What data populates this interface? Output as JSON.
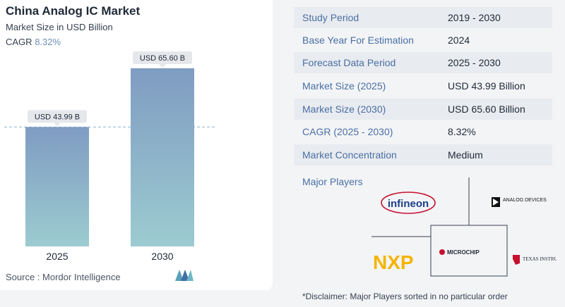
{
  "chart": {
    "title": "China Analog IC Market",
    "subtitle": "Market Size in USD Billion",
    "cagr_label": "CAGR",
    "cagr_value": "8.32%",
    "source": "Source :  Mordor Intelligence"
  },
  "chart_data": {
    "type": "bar",
    "categories": [
      "2025",
      "2030"
    ],
    "values": [
      43.99,
      65.6
    ],
    "data_labels": [
      "USD 43.99 B",
      "USD 65.60 B"
    ],
    "reference_line": 43.99,
    "ylim": [
      0,
      70
    ],
    "grid": false,
    "xlabel": "",
    "ylabel": "",
    "colors": {
      "bar_top": "#7f9cc2",
      "bar_bottom": "#9ccbd0"
    }
  },
  "info": {
    "rows": [
      {
        "label": "Study Period",
        "value": "2019 - 2030"
      },
      {
        "label": "Base Year For Estimation",
        "value": "2024"
      },
      {
        "label": "Forecast Data Period",
        "value": "2025 - 2030"
      },
      {
        "label": "Market Size (2025)",
        "value": "USD 43.99 Billion"
      },
      {
        "label": "Market Size (2030)",
        "value": "USD 65.60 Billion"
      },
      {
        "label": "CAGR (2025 - 2030)",
        "value": "8.32%"
      },
      {
        "label": "Market Concentration",
        "value": "Medium"
      }
    ],
    "major_players_label": "Major Players",
    "players": [
      "infineon",
      "ANALOG DEVICES",
      "NXP",
      "MICROCHIP",
      "TEXAS INSTRUMENTS"
    ],
    "disclaimer": "*Disclaimer: Major Players sorted in no particular order"
  },
  "colors": {
    "label_blue": "#4a6fa5",
    "accent": "#6b8fb8"
  }
}
